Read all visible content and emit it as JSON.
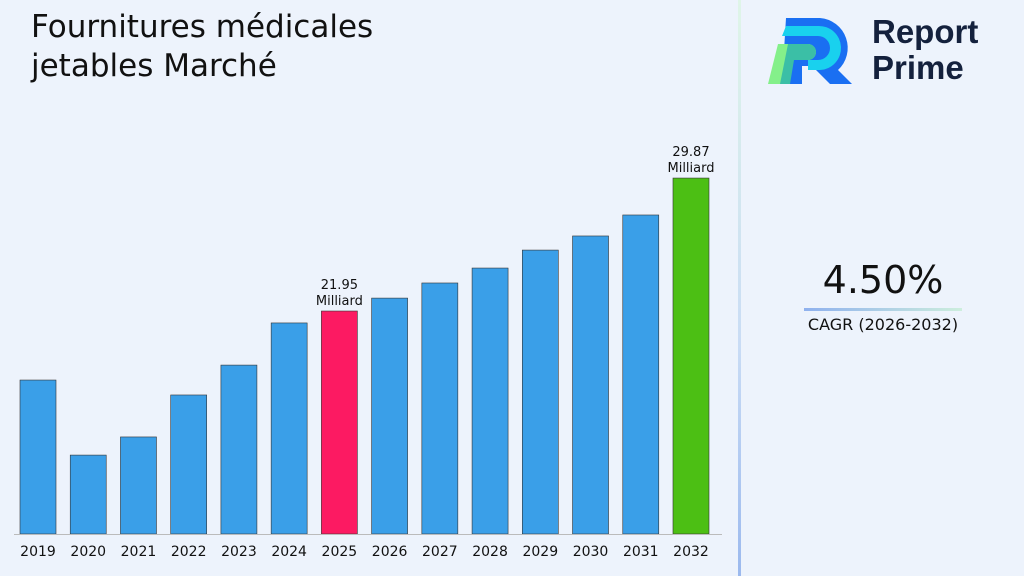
{
  "title": "Fournitures médicales jetables Marché",
  "brand": {
    "line1": "Report",
    "line2": "Prime"
  },
  "cagr": {
    "value": "4.50%",
    "label": "CAGR (2026-2032)"
  },
  "chart_data": {
    "type": "bar",
    "categories": [
      "2019",
      "2020",
      "2021",
      "2022",
      "2023",
      "2024",
      "2025",
      "2026",
      "2027",
      "2028",
      "2029",
      "2030",
      "2031",
      "2032"
    ],
    "values": [
      17.84,
      13.37,
      14.45,
      16.95,
      18.73,
      21.24,
      21.95,
      22.72,
      23.62,
      24.51,
      25.58,
      26.42,
      27.67,
      29.87
    ],
    "unit": "Milliard",
    "data_labels": [
      {
        "category": "2025",
        "text": "21.95",
        "unit": "Milliard"
      },
      {
        "category": "2032",
        "text": "29.87",
        "unit": "Milliard"
      }
    ],
    "colors": {
      "default": "#3a9fe8",
      "highlight_2025": "#fc1a62",
      "highlight_2032": "#4cbf14"
    },
    "grid": false
  }
}
